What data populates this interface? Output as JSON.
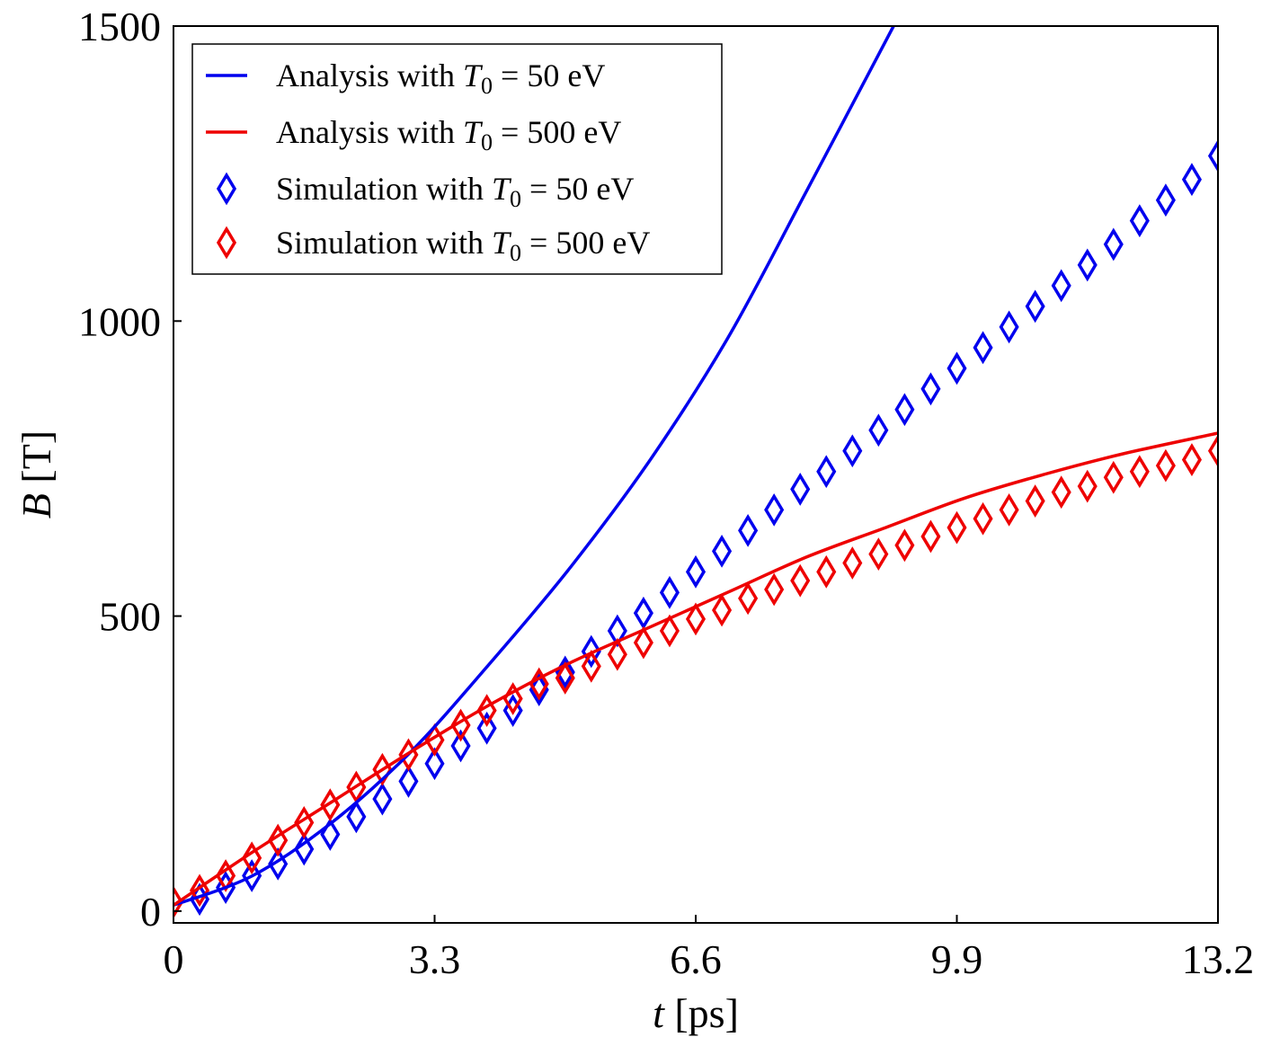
{
  "chart_data": {
    "type": "line",
    "title": "",
    "xlabel": {
      "var": "t",
      "unit": " [ps]"
    },
    "ylabel": {
      "var": "B",
      "unit": " [T]"
    },
    "xlim": [
      0,
      13.2
    ],
    "ylim": [
      -20,
      1500
    ],
    "xticks": [
      "0",
      "3.3",
      "6.6",
      "9.9",
      "13.2"
    ],
    "yticks": [
      "0",
      "500",
      "1000",
      "1500"
    ],
    "grid": false,
    "legend_position": "top-left",
    "series": [
      {
        "name": "Analysis with T0 = 50 eV",
        "legend": {
          "prefix": "Analysis with ",
          "var": "T",
          "sub": "0",
          "suffix": " = 50 eV"
        },
        "kind": "line",
        "color": "#0000ee",
        "x": [
          0,
          1,
          2,
          3,
          4,
          5,
          6,
          7,
          8,
          9.1
        ],
        "y": [
          10,
          60,
          150,
          270,
          420,
          580,
          760,
          970,
          1220,
          1500
        ]
      },
      {
        "name": "Analysis with T0 = 500 eV",
        "legend": {
          "prefix": "Analysis with ",
          "var": "T",
          "sub": "0",
          "suffix": " = 500 eV"
        },
        "kind": "line",
        "color": "#ee0000",
        "x": [
          0,
          1,
          2,
          3,
          4,
          5,
          6,
          7,
          8,
          9,
          10,
          11,
          12,
          13.2
        ],
        "y": [
          10,
          100,
          185,
          270,
          350,
          420,
          480,
          540,
          600,
          650,
          700,
          740,
          775,
          810
        ]
      },
      {
        "name": "Simulation with T0 = 50 eV",
        "legend": {
          "prefix": "Simulation with ",
          "var": "T",
          "sub": "0",
          "suffix": " = 50 eV"
        },
        "kind": "marker",
        "marker": "diamond",
        "color": "#0000ee",
        "x": [
          0.33,
          0.66,
          0.99,
          1.32,
          1.65,
          1.98,
          2.31,
          2.64,
          2.97,
          3.3,
          3.63,
          3.96,
          4.29,
          4.62,
          4.95,
          5.28,
          5.61,
          5.94,
          6.27,
          6.6,
          6.93,
          7.26,
          7.59,
          7.92,
          8.25,
          8.58,
          8.91,
          9.24,
          9.57,
          9.9,
          10.23,
          10.56,
          10.89,
          11.22,
          11.55,
          11.88,
          12.21,
          12.54,
          12.87,
          13.2
        ],
        "y": [
          20,
          40,
          60,
          80,
          105,
          130,
          160,
          190,
          220,
          250,
          280,
          310,
          340,
          375,
          405,
          440,
          475,
          505,
          540,
          575,
          610,
          645,
          680,
          715,
          745,
          780,
          815,
          850,
          885,
          920,
          955,
          990,
          1025,
          1060,
          1095,
          1130,
          1170,
          1205,
          1240,
          1280
        ]
      },
      {
        "name": "Simulation with T0 = 500 eV",
        "legend": {
          "prefix": "Simulation with ",
          "var": "T",
          "sub": "0",
          "suffix": " = 500 eV"
        },
        "kind": "marker",
        "marker": "diamond",
        "color": "#ee0000",
        "x": [
          0,
          0.33,
          0.66,
          0.99,
          1.32,
          1.65,
          1.98,
          2.31,
          2.64,
          2.97,
          3.3,
          3.63,
          3.96,
          4.29,
          4.62,
          4.95,
          5.28,
          5.61,
          5.94,
          6.27,
          6.6,
          6.93,
          7.26,
          7.59,
          7.92,
          8.25,
          8.58,
          8.91,
          9.24,
          9.57,
          9.9,
          10.23,
          10.56,
          10.89,
          11.22,
          11.55,
          11.88,
          12.21,
          12.54,
          12.87,
          13.2
        ],
        "y": [
          15,
          35,
          60,
          90,
          120,
          150,
          180,
          210,
          240,
          265,
          290,
          315,
          340,
          360,
          385,
          395,
          415,
          435,
          455,
          475,
          495,
          510,
          530,
          545,
          560,
          575,
          590,
          605,
          620,
          635,
          650,
          665,
          680,
          695,
          710,
          720,
          735,
          745,
          755,
          765,
          780
        ]
      }
    ]
  }
}
